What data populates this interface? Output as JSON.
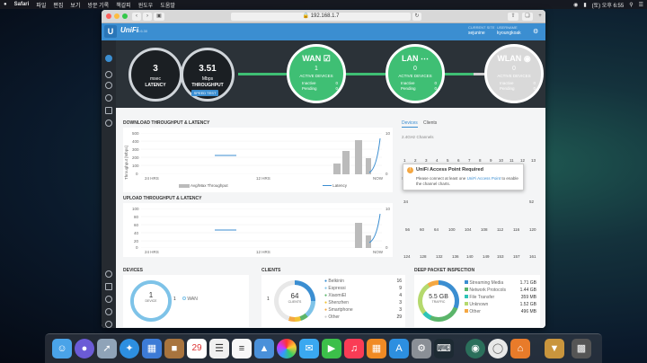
{
  "menubar": {
    "apple": "",
    "items": [
      "Safari",
      "파일",
      "편집",
      "보기",
      "방문 기록",
      "책갈피",
      "윈도우",
      "도움말"
    ],
    "clock": "(토) 오후 6:55"
  },
  "browser": {
    "url": "192.168.1.7"
  },
  "header": {
    "logo": "U",
    "brand": "UniFi",
    "version": "5.6.30",
    "site_caption": "CURRENT SITE",
    "site_value": "sejunine",
    "user_caption": "USERNAME",
    "user_value": "kyoungkoak"
  },
  "gauges": {
    "latency_value": "3",
    "latency_unit": "msec",
    "latency_label": "LATENCY",
    "throughput_value": "3.51",
    "throughput_unit": "Mbps",
    "throughput_label": "THROUGHPUT",
    "speed_test": "SPEED TEST"
  },
  "stats": {
    "wan": {
      "title": "WAN",
      "count": "1",
      "caption": "ACTIVE DEVICES",
      "inactive_label": "Inactive",
      "inactive": "0",
      "pending_label": "Pending",
      "pending": "0"
    },
    "lan": {
      "title": "LAN",
      "count": "0",
      "caption": "ACTIVE DEVICES",
      "inactive_label": "Inactive",
      "inactive": "0",
      "pending_label": "Pending",
      "pending": "0"
    },
    "wlan": {
      "title": "WLAN",
      "count": "0",
      "caption": "ACTIVE DEVICES",
      "inactive_label": "Inactive",
      "inactive": "0",
      "pending_label": "Pending",
      "pending": "0"
    }
  },
  "download": {
    "title": "DOWNLOAD THROUGHPUT & LATENCY",
    "ylabel": "Throughput [Mbps]",
    "ylabel_right": "Latency [msec]",
    "yticks": [
      "500",
      "400",
      "300",
      "200",
      "100",
      "0"
    ],
    "yticks_right": [
      "10",
      "8",
      "6",
      "4",
      "2",
      "0"
    ],
    "xticks": [
      "24 HRS",
      "12 HRS",
      "NOW"
    ],
    "legend_throughput": "Avg/Max Throughput",
    "legend_latency": "Latency"
  },
  "upload": {
    "title": "UPLOAD THROUGHPUT & LATENCY",
    "ylabel": "Throughput [Mbps]",
    "ylabel_right": "Latency [msec]",
    "yticks": [
      "100",
      "80",
      "60",
      "40",
      "20",
      "0"
    ],
    "yticks_right": [
      "10",
      "8",
      "6",
      "4",
      "2",
      "0"
    ],
    "xticks": [
      "24 HRS",
      "12 HRS",
      "NOW"
    ]
  },
  "channels": {
    "tab_devices": "Devices",
    "tab_clients": "Clients",
    "ghz24_label": "2.4GHz Channels",
    "ghz24": [
      "1",
      "2",
      "3",
      "4",
      "5",
      "6",
      "7",
      "8",
      "9",
      "10",
      "11",
      "12",
      "13"
    ],
    "ghz5_label": "5GHz Channels",
    "ghz5_row1_first": "34",
    "ghz5_row1_last": "52",
    "ghz5_row2": [
      "56",
      "60",
      "64",
      "100",
      "104",
      "108",
      "112",
      "116",
      "120"
    ],
    "ghz5_row3": [
      "124",
      "128",
      "132",
      "136",
      "140",
      "149",
      "153",
      "157",
      "161"
    ]
  },
  "popup": {
    "title": "UniFi Access Point Required",
    "text_before": "Please connect at least one",
    "link": "UniFi Access Point",
    "text_after": "to enable the channel charts."
  },
  "devices": {
    "title": "DEVICES",
    "total": "1",
    "total_caption": "DEVICE",
    "left_count": "1",
    "item": "WAN"
  },
  "clients": {
    "title": "CLIENTS",
    "total": "64",
    "total_caption": "CLIENTS",
    "left_count": "1",
    "items": [
      {
        "name": "Belkinin",
        "value": "16",
        "color": "#3b8ed1"
      },
      {
        "name": "Espressi",
        "value": "9",
        "color": "#7ec3e8"
      },
      {
        "name": "XiaomiEl",
        "value": "4",
        "color": "#5bb56a"
      },
      {
        "name": "Shenzhen",
        "value": "3",
        "color": "#f1c232"
      },
      {
        "name": "Smartphone",
        "value": "3",
        "color": "#f4a742"
      },
      {
        "name": "Other",
        "value": "29",
        "color": "#e8e8e8"
      }
    ]
  },
  "dpi": {
    "title": "DEEP PACKET INSPECTION",
    "total": "5.5 GB",
    "total_caption": "TRAFFIC",
    "items": [
      {
        "name": "Streaming Media",
        "value": "1.71 GB",
        "color": "#3b8ed1"
      },
      {
        "name": "Network Protocols",
        "value": "1.44 GB",
        "color": "#5bb56a"
      },
      {
        "name": "File Transfer",
        "value": "359 MB",
        "color": "#2ec4b6"
      },
      {
        "name": "Unknown",
        "value": "1.52 GB",
        "color": "#b5d96e"
      },
      {
        "name": "Other",
        "value": "496 MB",
        "color": "#f4a742"
      }
    ]
  },
  "colors": {
    "accent": "#3b8ed1",
    "green": "#3fbf74",
    "inactive": "#d9d9d9"
  }
}
